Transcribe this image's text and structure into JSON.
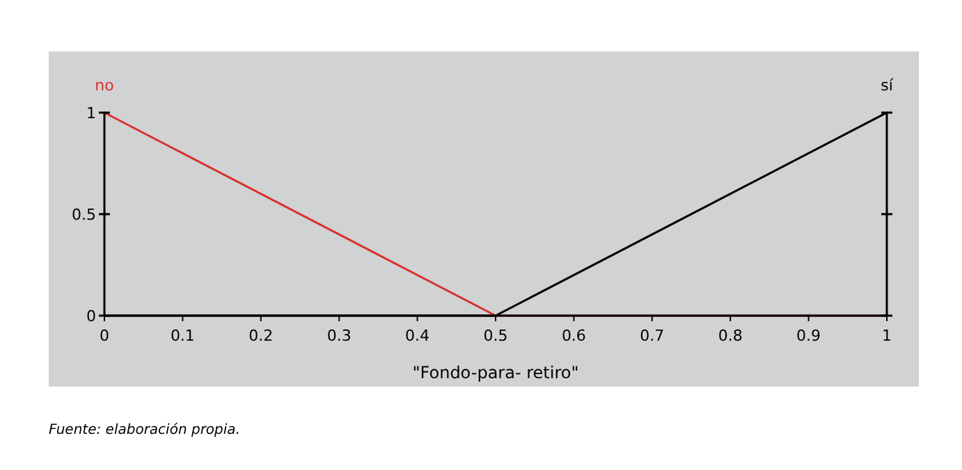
{
  "chart_data": {
    "type": "line",
    "xlabel": "\"Fondo-para- retiro\"",
    "annotations": [
      "Fuente: elaboración propia."
    ],
    "x": [
      0,
      0.5,
      1
    ],
    "series": [
      {
        "name": "sí",
        "color": "#000000",
        "values": [
          0,
          0,
          1
        ]
      },
      {
        "name": "no",
        "color": "#d8322b",
        "values": [
          1,
          0,
          0
        ]
      }
    ],
    "xlim": [
      0,
      1
    ],
    "xticks": [
      0,
      0.1,
      0.2,
      0.3,
      0.4,
      0.5,
      0.6,
      0.7,
      0.8,
      0.9,
      1
    ],
    "ylim": [
      0,
      1
    ],
    "yticks": [
      0,
      0.5,
      1
    ],
    "grid": false,
    "legend": false,
    "marker": "none",
    "line_style": "solid"
  }
}
